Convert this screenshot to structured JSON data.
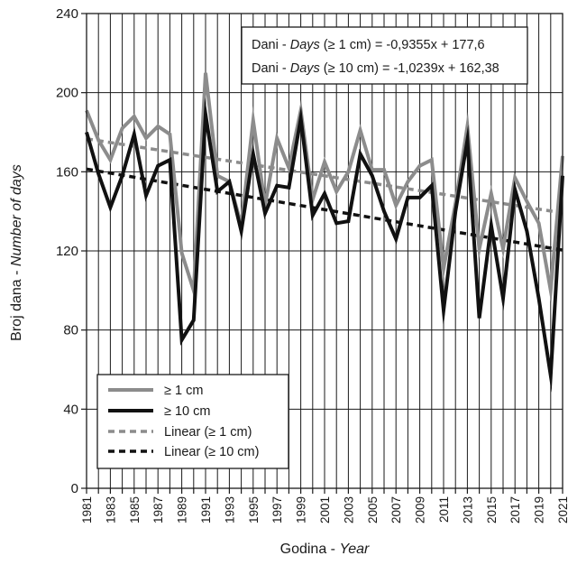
{
  "colors": {
    "series_ge1": "#8c8c8c",
    "series_ge10": "#111111",
    "trend_ge1": "#8c8c8c",
    "trend_ge10": "#111111",
    "grid": "#1a1a1a",
    "axis": "#1a1a1a"
  },
  "chart_data": {
    "type": "line",
    "xlabel": {
      "main": "Godina - ",
      "italic": "Year"
    },
    "ylabel": {
      "main": "Broj dana - ",
      "italic": "Number of days"
    },
    "ylim": [
      0,
      240
    ],
    "yticks": [
      "0",
      "40",
      "80",
      "120",
      "160",
      "200",
      "240"
    ],
    "xlim": [
      1981,
      2021
    ],
    "xticks": [
      "1981",
      "1983",
      "1985",
      "1987",
      "1989",
      "1991",
      "1993",
      "1995",
      "1997",
      "1999",
      "2001",
      "2003",
      "2005",
      "2007",
      "2009",
      "2011",
      "2013",
      "2015",
      "2017",
      "2019",
      "2021"
    ],
    "grid": true,
    "legend_position": "bottom-left",
    "x": [
      1981,
      1982,
      1983,
      1984,
      1985,
      1986,
      1987,
      1988,
      1989,
      1990,
      1991,
      1992,
      1993,
      1994,
      1995,
      1996,
      1997,
      1998,
      1999,
      2000,
      2001,
      2002,
      2003,
      2004,
      2005,
      2006,
      2007,
      2008,
      2009,
      2010,
      2011,
      2012,
      2013,
      2014,
      2015,
      2016,
      2017,
      2018,
      2019,
      2020,
      2021
    ],
    "series": [
      {
        "name": "≥ 1 cm",
        "values": [
          191,
          176,
          166,
          182,
          188,
          177,
          183,
          179,
          119,
          100,
          210,
          158,
          155,
          133,
          186,
          143,
          177,
          162,
          191,
          146,
          165,
          150,
          160,
          181,
          161,
          161,
          143,
          155,
          163,
          166,
          111,
          144,
          183,
          121,
          149,
          121,
          157,
          145,
          134,
          100,
          168
        ]
      },
      {
        "name": "≥ 10 cm",
        "values": [
          180,
          159,
          142,
          158,
          179,
          148,
          163,
          166,
          75,
          85,
          189,
          150,
          155,
          130,
          169,
          139,
          153,
          152,
          187,
          138,
          149,
          134,
          135,
          169,
          158,
          140,
          126,
          147,
          147,
          153,
          90,
          140,
          176,
          86,
          133,
          96,
          151,
          130,
          96,
          57,
          158
        ]
      },
      {
        "name": "Linear (≥ 1 cm)",
        "trend": true,
        "slope": -0.9355,
        "intercept": 177.6
      },
      {
        "name": "Linear (≥ 10 cm)",
        "trend": true,
        "slope": -1.0239,
        "intercept": 162.38
      }
    ],
    "annotations": [
      {
        "prefix": "Dani - ",
        "italic": "Days",
        "suffix": " (≥ 1 cm) = -0,9355x + 177,6"
      },
      {
        "prefix": "Dani - ",
        "italic": "Days",
        "suffix": " (≥ 10 cm) = -1,0239x + 162,38"
      }
    ]
  }
}
